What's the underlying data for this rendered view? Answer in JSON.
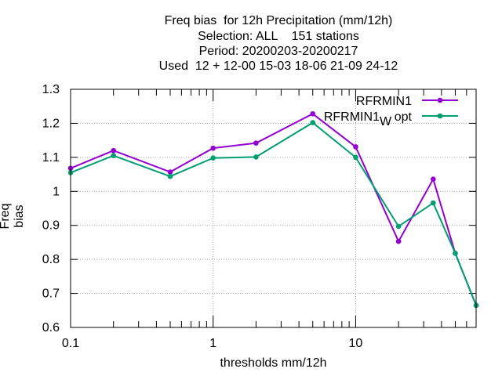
{
  "chart_data": {
    "type": "line",
    "title_lines": [
      "Freq bias  for 12h Precipitation (mm/12h)",
      "Selection: ALL    151 stations",
      "Period: 20200203-20200217",
      "Used  12 + 12-00 15-03 18-06 21-09 24-12"
    ],
    "xlabel": "thresholds mm/12h",
    "ylabel": "Freq bias",
    "x_scale": "log",
    "xlim": [
      0.1,
      70
    ],
    "ylim": [
      0.6,
      1.3
    ],
    "x_ticks": [
      0.1,
      1,
      10
    ],
    "x_tick_labels": [
      "0.1",
      "1",
      "10"
    ],
    "y_ticks": [
      0.6,
      0.7,
      0.8,
      0.9,
      1.0,
      1.1,
      1.2,
      1.3
    ],
    "y_tick_labels": [
      "0.6",
      "0.7",
      "0.8",
      "0.9",
      "1",
      "1.1",
      "1.2",
      "1.3"
    ],
    "grid": true,
    "legend_position": "top-right",
    "x": [
      0.1,
      0.2,
      0.5,
      1,
      2,
      5,
      10,
      20,
      35,
      50,
      70
    ],
    "series": [
      {
        "name": "RFRMIN1",
        "color": "#9400d3",
        "values": [
          1.068,
          1.12,
          1.057,
          1.127,
          1.142,
          1.228,
          1.131,
          0.853,
          1.036,
          0.818,
          0.665
        ]
      },
      {
        "name_main": "RFRMIN1",
        "name_sub": "W",
        "name_tail": "opt",
        "color": "#009e73",
        "values": [
          1.055,
          1.105,
          1.044,
          1.098,
          1.101,
          1.202,
          1.1,
          0.897,
          0.966,
          0.818,
          0.665
        ]
      }
    ]
  }
}
